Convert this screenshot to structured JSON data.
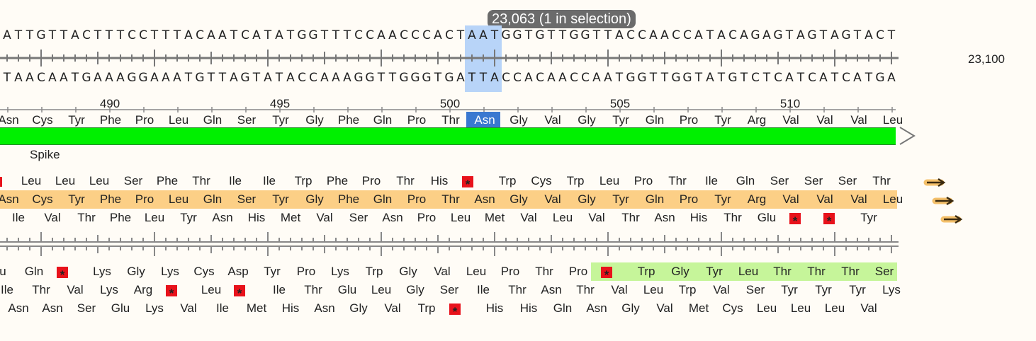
{
  "tooltip": "23,063  (1 in selection)",
  "right_position": "23,100",
  "top_strand": "ATTGTTACTTTCCTTTACAATCATATGGTTTCCAACCCACTAATGGTGTTGGTTACCAACCATACAGAGTAGTAGTACT",
  "bottom_strand": "TAACAATGAAAGGAAATGTTAGTATACCAAAGGTTGGGTGATTACCACAACCAATGGTTGGTATGTCTCATCATCATGA",
  "positions": [
    "490",
    "495",
    "500",
    "505",
    "510"
  ],
  "translation": [
    "Asn",
    "Cys",
    "Tyr",
    "Phe",
    "Pro",
    "Leu",
    "Gln",
    "Ser",
    "Tyr",
    "Gly",
    "Phe",
    "Gln",
    "Pro",
    "Thr",
    "Asn",
    "Gly",
    "Val",
    "Gly",
    "Tyr",
    "Gln",
    "Pro",
    "Tyr",
    "Arg",
    "Val",
    "Val",
    "Val",
    "Leu"
  ],
  "feature": {
    "label": "Spike",
    "color": "#00f000"
  },
  "frames_forward": [
    [
      "",
      "Leu",
      "Leu",
      "Leu",
      "Ser",
      "Phe",
      "Thr",
      "Ile",
      "Ile",
      "Trp",
      "Phe",
      "Pro",
      "Thr",
      "His",
      "*",
      "Trp",
      "Cys",
      "Trp",
      "Leu",
      "Pro",
      "Thr",
      "Ile",
      "Gln",
      "Ser",
      "Ser",
      "Ser",
      "Thr"
    ],
    [
      "Asn",
      "Cys",
      "Tyr",
      "Phe",
      "Pro",
      "Leu",
      "Gln",
      "Ser",
      "Tyr",
      "Gly",
      "Phe",
      "Gln",
      "Pro",
      "Thr",
      "Asn",
      "Gly",
      "Val",
      "Gly",
      "Tyr",
      "Gln",
      "Pro",
      "Tyr",
      "Arg",
      "Val",
      "Val",
      "Val",
      "Leu"
    ],
    [
      "Ile",
      "Val",
      "Thr",
      "Phe",
      "Leu",
      "Tyr",
      "Asn",
      "His",
      "Met",
      "Val",
      "Ser",
      "Asn",
      "Pro",
      "Leu",
      "Met",
      "Val",
      "Leu",
      "Val",
      "Thr",
      "Asn",
      "His",
      "Thr",
      "Glu",
      "*",
      "*",
      "Tyr"
    ]
  ],
  "frames_reverse": [
    [
      "u",
      "Gln",
      "*",
      "Lys",
      "Gly",
      "Lys",
      "Cys",
      "Asp",
      "Tyr",
      "Pro",
      "Lys",
      "Trp",
      "Gly",
      "Val",
      "Leu",
      "Pro",
      "Thr",
      "Pro",
      "*",
      "Trp",
      "Gly",
      "Tyr",
      "Leu",
      "Thr",
      "Thr",
      "Thr",
      "Ser"
    ],
    [
      "Ile",
      "Thr",
      "Val",
      "Lys",
      "Arg",
      "*",
      "Leu",
      "*",
      "Ile",
      "Thr",
      "Glu",
      "Leu",
      "Gly",
      "Ser",
      "Ile",
      "Thr",
      "Asn",
      "Thr",
      "Val",
      "Leu",
      "Trp",
      "Val",
      "Ser",
      "Tyr",
      "Tyr",
      "Tyr",
      "Lys"
    ],
    [
      "Asn",
      "Asn",
      "Ser",
      "Glu",
      "Lys",
      "Val",
      "Ile",
      "Met",
      "His",
      "Asn",
      "Gly",
      "Val",
      "Trp",
      "*",
      "His",
      "His",
      "Gln",
      "Asn",
      "Gly",
      "Val",
      "Met",
      "Cys",
      "Leu",
      "Leu",
      "Leu",
      "Val"
    ]
  ],
  "colors": {
    "selection": "#b8d4f8",
    "selected_aa": "#3a78d0",
    "orf_highlight": "#fccf86",
    "rev_orf_highlight": "#c6f59a",
    "stop": "#e8121b",
    "arrow": "#f0a830",
    "feature": "#00f000"
  }
}
